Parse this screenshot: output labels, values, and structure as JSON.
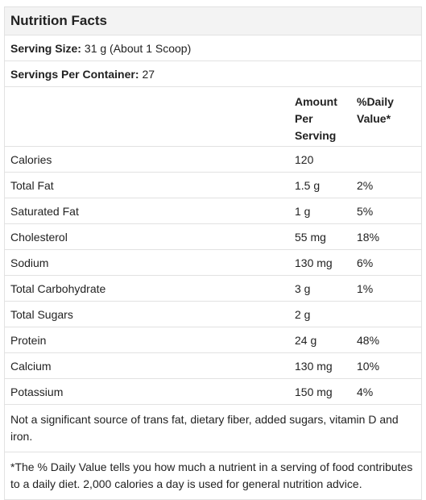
{
  "title": "Nutrition Facts",
  "serving_size": {
    "label": "Serving Size:",
    "value": "31 g (About 1 Scoop)"
  },
  "servings_per_container": {
    "label": "Servings Per Container:",
    "value": "27"
  },
  "table": {
    "columns": [
      "Amount Per Serving",
      "%Daily Value*"
    ],
    "rows": [
      {
        "nutrient": "Calories",
        "amount": "120"
      },
      {
        "nutrient": "Total Fat",
        "amount": "1.5 g",
        "daily_value": "2%"
      },
      {
        "nutrient": "Saturated Fat",
        "amount": "1 g",
        "daily_value": "5%"
      },
      {
        "nutrient": "Cholesterol",
        "amount": "55 mg",
        "daily_value": "18%"
      },
      {
        "nutrient": "Sodium",
        "amount": "130 mg",
        "daily_value": "6%"
      },
      {
        "nutrient": "Total Carbohydrate",
        "amount": "3 g",
        "daily_value": "1%"
      },
      {
        "nutrient": "Total Sugars",
        "amount": "2 g"
      },
      {
        "nutrient": "Protein",
        "amount": "24 g",
        "daily_value": "48%"
      },
      {
        "nutrient": "Calcium",
        "amount": "130 mg",
        "daily_value": "10%"
      },
      {
        "nutrient": "Potassium",
        "amount": "150 mg",
        "daily_value": "4%"
      }
    ]
  },
  "notes": [
    "Not a significant source of trans fat, dietary fiber, added sugars, vitamin D and iron.",
    "*The % Daily Value tells you how much a nutrient in a serving of food contributes to a daily diet. 2,000 calories a day is used for general nutrition advice."
  ]
}
